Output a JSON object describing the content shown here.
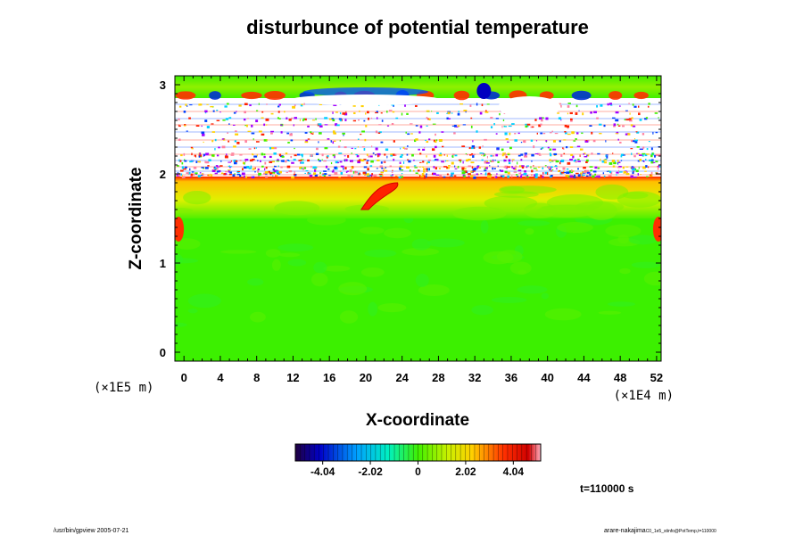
{
  "chart_data": {
    "type": "heatmap",
    "title": "disturbunce of potential temperature",
    "xlabel": "X-coordinate",
    "ylabel": "Z-coordinate",
    "x_unit": "(×1E4 m)",
    "y_unit": "(×1E5 m)",
    "xlim": [
      -1,
      52.5
    ],
    "ylim": [
      -0.1,
      3.1
    ],
    "xticks": [
      0,
      4,
      8,
      12,
      16,
      20,
      24,
      28,
      32,
      36,
      40,
      44,
      48,
      52
    ],
    "yticks": [
      0,
      1,
      2,
      3
    ],
    "colorbar": {
      "min": -5.2,
      "max": 5.2,
      "ticks": [
        -4.04,
        -2.02,
        0,
        2.02,
        4.04
      ],
      "tick_labels": [
        "-4.04",
        "-2.02",
        "0",
        "2.02",
        "4.04"
      ]
    },
    "time_label": "t=110000 s",
    "regions": [
      {
        "label": "near-neutral lower layer",
        "z": [
          0,
          1.5
        ],
        "value": 0.3
      },
      {
        "label": "warm layer",
        "z": [
          1.5,
          1.95
        ],
        "value": 1.5
      },
      {
        "label": "warm upper edge",
        "z": [
          1.9,
          1.97
        ],
        "value": 3.0
      },
      {
        "label": "noisy stratified band",
        "z": [
          1.97,
          2.85
        ],
        "value": null
      },
      {
        "label": "upper layer",
        "z": [
          2.85,
          3.05
        ],
        "value": 0.8
      }
    ]
  },
  "footer": {
    "left": "/usr/bin/gpview 2005-07-21",
    "right": "arare-nakajima",
    "right_small": "C0_1e5_stinfo@PotTemp,t=110000"
  },
  "colors": {
    "background": "#ffffff",
    "axis": "#000000",
    "field_base": "#3cf000"
  }
}
